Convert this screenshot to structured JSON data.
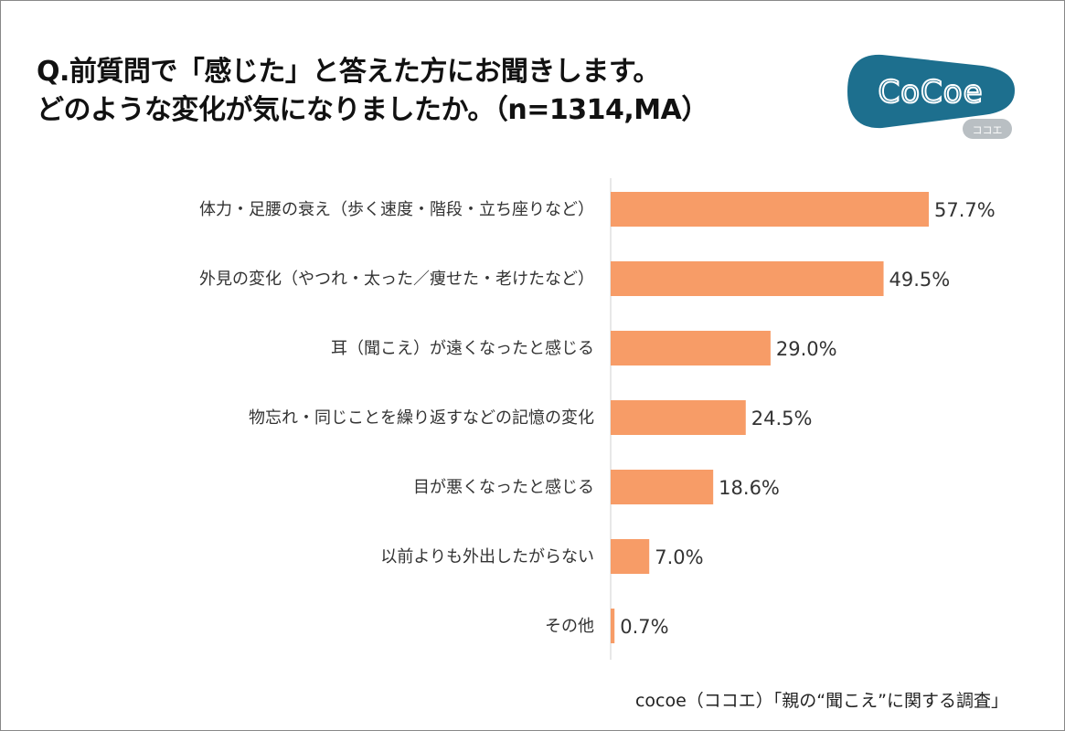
{
  "title": {
    "line1": "Q.前質問で「感じた」と答えた方にお聞きします。",
    "line2": "どのような変化が気になりましたか。（n=1314,MA）"
  },
  "logo": {
    "text": "CoCoe",
    "subtext": "ココエ",
    "color": "#1D6F8E"
  },
  "source": "cocoe（ココエ）「親の“聞こえ”に関する調査」",
  "chart_data": {
    "type": "bar",
    "orientation": "horizontal",
    "categories": [
      "体力・足腰の衰え（歩く速度・階段・立ち座りなど）",
      "外見の変化（やつれ・太った／痩せた・老けたなど）",
      "耳（聞こえ）が遠くなったと感じる",
      "物忘れ・同じことを繰り返すなどの記憶の変化",
      "目が悪くなったと感じる",
      "以前よりも外出したがらない",
      "その他"
    ],
    "values": [
      57.7,
      49.5,
      29.0,
      24.5,
      18.6,
      7.0,
      0.7
    ],
    "labels": [
      "57.7%",
      "49.5%",
      "29.0%",
      "24.5%",
      "18.6%",
      "7.0%",
      "0.7%"
    ],
    "unit": "%",
    "bar_color": "#F79C67",
    "grid": false
  }
}
